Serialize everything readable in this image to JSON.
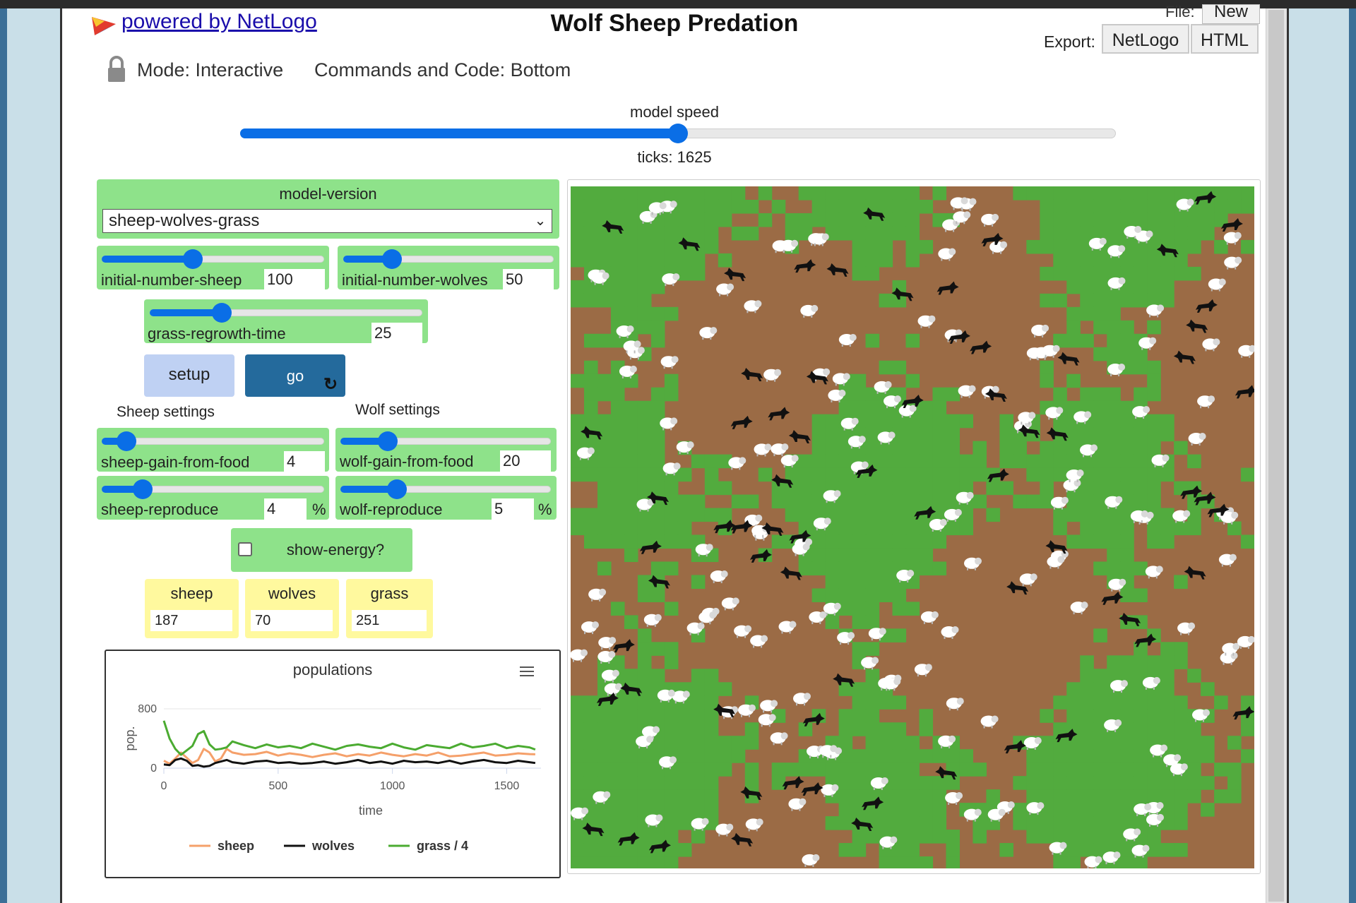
{
  "header": {
    "powered_by": "powered by NetLogo",
    "title": "Wolf Sheep Predation",
    "file_label": "File:",
    "file_new": "New",
    "export_label": "Export:",
    "export_netlogo": "NetLogo",
    "export_html": "HTML"
  },
  "toolbar": {
    "mode": "Mode: Interactive",
    "commands_and_code": "Commands and Code: Bottom"
  },
  "speed": {
    "label": "model speed",
    "level": 0.5,
    "ticks_text": "ticks: 1625"
  },
  "chooser": {
    "label": "model-version",
    "selected": "sheep-wolves-grass"
  },
  "sliders": {
    "initial_sheep": {
      "label": "initial-number-sheep",
      "value": "100",
      "level": 0.41
    },
    "initial_wolves": {
      "label": "initial-number-wolves",
      "value": "50",
      "level": 0.2
    },
    "grass_regrowth": {
      "label": "grass-regrowth-time",
      "value": "25",
      "level": 0.25
    },
    "sheep_gain": {
      "label": "sheep-gain-from-food",
      "value": "4",
      "level": 0.08
    },
    "wolf_gain": {
      "label": "wolf-gain-from-food",
      "value": "20",
      "level": 0.2
    },
    "sheep_reproduce": {
      "label": "sheep-reproduce",
      "value": "4",
      "unit": "%",
      "level": 0.2
    },
    "wolf_reproduce": {
      "label": "wolf-reproduce",
      "value": "5",
      "unit": "%",
      "level": 0.25
    }
  },
  "buttons": {
    "setup": "setup",
    "go": "go"
  },
  "notes": {
    "sheep_settings": "Sheep settings",
    "wolf_settings": "Wolf settings"
  },
  "switch": {
    "label": "show-energy?",
    "checked": false
  },
  "monitors": {
    "sheep": {
      "label": "sheep",
      "value": "187"
    },
    "wolves": {
      "label": "wolves",
      "value": "70"
    },
    "grass": {
      "label": "grass",
      "value": "251"
    }
  },
  "colors": {
    "accent": "#0a6ee6",
    "widget_green": "#8ee28a",
    "monitor_yellow": "#fff99e",
    "go_button": "#246a9c",
    "grass_patch": "#52ab3e",
    "dirt_patch": "#9b6b45"
  },
  "chart_data": {
    "type": "line",
    "title": "populations",
    "xlabel": "time",
    "ylabel": "pop.",
    "xlim": [
      0,
      1650
    ],
    "ylim": [
      0,
      800
    ],
    "xticks": [
      0,
      500,
      1000,
      1500
    ],
    "yticks": [
      0,
      800
    ],
    "legend_position": "bottom",
    "series": [
      {
        "name": "sheep",
        "color": "#f5a06a",
        "x": [
          0,
          25,
          50,
          75,
          100,
          125,
          150,
          175,
          200,
          225,
          250,
          275,
          300,
          350,
          400,
          450,
          500,
          550,
          600,
          650,
          700,
          750,
          800,
          850,
          900,
          950,
          1000,
          1050,
          1100,
          1150,
          1200,
          1250,
          1300,
          1350,
          1400,
          1450,
          1500,
          1550,
          1600,
          1625
        ],
        "y": [
          100,
          60,
          130,
          210,
          140,
          70,
          110,
          260,
          210,
          90,
          130,
          260,
          210,
          180,
          190,
          220,
          170,
          200,
          180,
          150,
          180,
          200,
          160,
          190,
          170,
          210,
          180,
          160,
          190,
          170,
          210,
          160,
          170,
          190,
          210,
          170,
          180,
          200,
          190,
          187
        ]
      },
      {
        "name": "wolves",
        "color": "#111111",
        "x": [
          0,
          25,
          50,
          75,
          100,
          125,
          150,
          175,
          200,
          225,
          250,
          275,
          300,
          350,
          400,
          450,
          500,
          550,
          600,
          650,
          700,
          750,
          800,
          850,
          900,
          950,
          1000,
          1050,
          1100,
          1150,
          1200,
          1250,
          1300,
          1350,
          1400,
          1450,
          1500,
          1550,
          1600,
          1625
        ],
        "y": [
          50,
          40,
          110,
          130,
          100,
          30,
          40,
          20,
          30,
          70,
          90,
          110,
          80,
          60,
          90,
          100,
          70,
          80,
          60,
          70,
          90,
          60,
          80,
          110,
          70,
          90,
          60,
          100,
          80,
          90,
          70,
          100,
          60,
          90,
          110,
          80,
          70,
          100,
          80,
          70
        ]
      },
      {
        "name": "grass / 4",
        "color": "#4bab31",
        "x": [
          0,
          25,
          50,
          75,
          100,
          125,
          150,
          175,
          200,
          225,
          250,
          275,
          300,
          350,
          400,
          450,
          500,
          550,
          600,
          650,
          700,
          750,
          800,
          850,
          900,
          950,
          1000,
          1050,
          1100,
          1150,
          1200,
          1250,
          1300,
          1350,
          1400,
          1450,
          1500,
          1550,
          1600,
          1625
        ],
        "y": [
          640,
          400,
          260,
          180,
          240,
          300,
          460,
          500,
          320,
          250,
          260,
          280,
          360,
          310,
          270,
          320,
          280,
          300,
          270,
          330,
          290,
          250,
          300,
          320,
          290,
          270,
          330,
          280,
          250,
          310,
          290,
          270,
          330,
          280,
          300,
          330,
          270,
          300,
          280,
          251
        ]
      }
    ]
  }
}
